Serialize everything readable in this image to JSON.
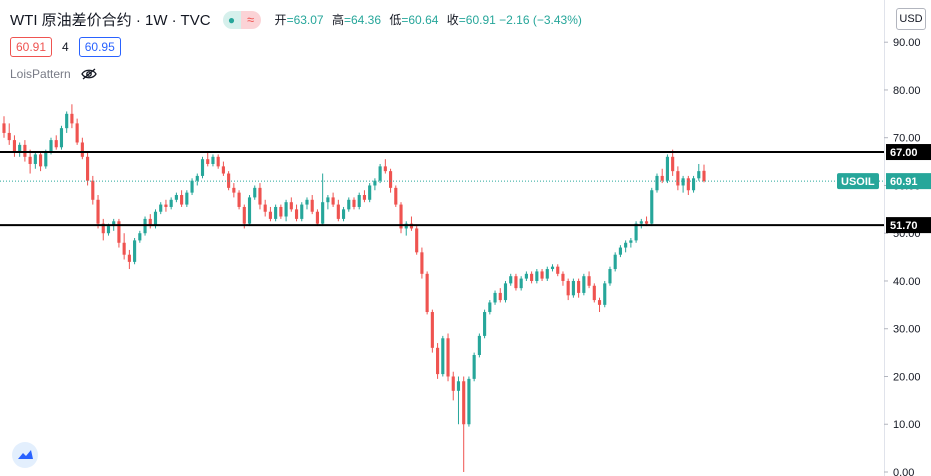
{
  "header": {
    "symbol": "WTI 原油差价合约 · 1W · TVC",
    "status_icon": "≈",
    "ohlc": [
      {
        "k": "开",
        "v": "=63.07"
      },
      {
        "k": "高",
        "v": "=64.36"
      },
      {
        "k": "低",
        "v": "=60.64"
      },
      {
        "k": "收",
        "v": "=60.91 −2.16 (−3.43%)"
      }
    ],
    "bid": "60.91",
    "spread": "4",
    "ask": "60.95",
    "indicator": "LoisPattern"
  },
  "currency_button": "USD",
  "colors": {
    "up": "#26a69a",
    "down": "#ef5350",
    "line": "#000000",
    "axis_text": "#131722"
  },
  "chart_data": {
    "type": "candlestick",
    "symbol": "USOIL",
    "y_axis_labels": [
      "90.00",
      "80.00",
      "70.00",
      "60.00",
      "50.00",
      "40.00",
      "30.00",
      "20.00",
      "10.00",
      "0.00"
    ],
    "ylim": [
      0,
      95
    ],
    "last_price": {
      "label": "USOIL",
      "value": "60.91"
    },
    "horizontal_lines": [
      {
        "value": 67.0,
        "label": "67.00"
      },
      {
        "value": 51.7,
        "label": "51.70"
      }
    ],
    "candles": [
      [
        73.0,
        74.5,
        70.0,
        71.0
      ],
      [
        71.0,
        73.0,
        68.5,
        69.5
      ],
      [
        69.5,
        70.5,
        66.0,
        67.0
      ],
      [
        67.0,
        69.0,
        66.0,
        68.5
      ],
      [
        68.5,
        69.5,
        65.0,
        66.0
      ],
      [
        66.0,
        67.5,
        62.5,
        64.5
      ],
      [
        64.5,
        67.0,
        63.5,
        66.5
      ],
      [
        66.5,
        67.0,
        63.0,
        64.0
      ],
      [
        64.0,
        67.5,
        63.5,
        67.0
      ],
      [
        67.0,
        70.0,
        66.5,
        69.5
      ],
      [
        69.5,
        70.5,
        67.5,
        68.0
      ],
      [
        68.0,
        72.5,
        67.5,
        72.0
      ],
      [
        72.0,
        75.5,
        71.0,
        75.0
      ],
      [
        75.0,
        77.0,
        72.0,
        73.0
      ],
      [
        73.0,
        74.0,
        68.5,
        69.0
      ],
      [
        69.0,
        70.0,
        65.5,
        66.0
      ],
      [
        66.0,
        67.0,
        60.0,
        61.0
      ],
      [
        61.0,
        62.0,
        56.0,
        57.0
      ],
      [
        57.0,
        58.0,
        51.0,
        52.0
      ],
      [
        52.0,
        53.0,
        48.5,
        50.0
      ],
      [
        50.0,
        52.0,
        49.5,
        51.5
      ],
      [
        51.5,
        53.0,
        50.5,
        52.5
      ],
      [
        52.5,
        53.0,
        47.0,
        48.0
      ],
      [
        48.0,
        50.0,
        44.5,
        45.5
      ],
      [
        45.5,
        46.5,
        42.5,
        44.0
      ],
      [
        44.0,
        49.0,
        43.5,
        48.5
      ],
      [
        48.5,
        50.5,
        48.0,
        50.0
      ],
      [
        50.0,
        53.5,
        49.5,
        53.0
      ],
      [
        53.0,
        54.0,
        51.0,
        51.5
      ],
      [
        51.5,
        55.0,
        51.0,
        54.5
      ],
      [
        54.5,
        56.5,
        54.0,
        56.0
      ],
      [
        56.0,
        57.0,
        54.5,
        55.5
      ],
      [
        55.5,
        57.5,
        55.0,
        57.0
      ],
      [
        57.0,
        58.5,
        56.5,
        58.0
      ],
      [
        58.0,
        59.0,
        55.5,
        56.0
      ],
      [
        56.0,
        59.0,
        55.5,
        58.5
      ],
      [
        58.5,
        61.5,
        58.0,
        61.0
      ],
      [
        61.0,
        62.5,
        60.0,
        62.0
      ],
      [
        62.0,
        66.0,
        61.5,
        65.5
      ],
      [
        65.5,
        67.0,
        64.0,
        64.5
      ],
      [
        64.5,
        66.5,
        64.0,
        66.0
      ],
      [
        66.0,
        66.5,
        63.5,
        64.0
      ],
      [
        64.0,
        65.0,
        62.0,
        62.5
      ],
      [
        62.5,
        63.0,
        59.0,
        59.5
      ],
      [
        59.5,
        60.5,
        57.5,
        58.5
      ],
      [
        58.5,
        59.0,
        55.0,
        55.5
      ],
      [
        55.5,
        56.0,
        51.0,
        52.0
      ],
      [
        52.0,
        58.0,
        51.5,
        57.5
      ],
      [
        57.5,
        60.0,
        57.0,
        59.5
      ],
      [
        59.5,
        60.5,
        55.0,
        56.0
      ],
      [
        56.0,
        57.0,
        53.5,
        54.5
      ],
      [
        54.5,
        55.5,
        52.5,
        53.0
      ],
      [
        53.0,
        56.0,
        52.5,
        55.5
      ],
      [
        55.5,
        56.0,
        53.0,
        53.5
      ],
      [
        53.5,
        57.0,
        52.5,
        56.5
      ],
      [
        56.5,
        57.5,
        54.5,
        55.0
      ],
      [
        55.0,
        56.0,
        52.5,
        53.0
      ],
      [
        53.0,
        56.5,
        52.5,
        56.0
      ],
      [
        56.0,
        57.5,
        55.0,
        57.0
      ],
      [
        57.0,
        58.0,
        54.0,
        54.5
      ],
      [
        54.5,
        55.0,
        51.5,
        52.0
      ],
      [
        52.0,
        62.5,
        51.5,
        56.5
      ],
      [
        56.5,
        58.0,
        55.0,
        57.5
      ],
      [
        57.5,
        58.5,
        55.5,
        56.0
      ],
      [
        56.0,
        57.0,
        52.5,
        53.0
      ],
      [
        53.0,
        55.5,
        52.5,
        55.0
      ],
      [
        55.0,
        57.5,
        54.5,
        57.0
      ],
      [
        57.0,
        57.5,
        55.0,
        55.5
      ],
      [
        55.5,
        58.5,
        55.0,
        58.0
      ],
      [
        58.0,
        59.0,
        56.5,
        57.0
      ],
      [
        57.0,
        60.5,
        56.5,
        60.0
      ],
      [
        60.0,
        61.5,
        59.0,
        61.0
      ],
      [
        61.0,
        64.5,
        60.5,
        64.0
      ],
      [
        64.0,
        65.5,
        62.5,
        63.0
      ],
      [
        63.0,
        63.5,
        58.5,
        59.5
      ],
      [
        59.5,
        60.0,
        55.5,
        56.0
      ],
      [
        56.0,
        56.5,
        50.0,
        51.0
      ],
      [
        51.0,
        52.5,
        49.5,
        52.0
      ],
      [
        52.0,
        53.5,
        50.5,
        51.0
      ],
      [
        51.0,
        51.5,
        45.5,
        46.0
      ],
      [
        46.0,
        47.0,
        40.5,
        41.5
      ],
      [
        41.5,
        42.0,
        33.0,
        33.5
      ],
      [
        33.5,
        34.0,
        25.0,
        26.0
      ],
      [
        26.0,
        27.0,
        19.5,
        20.5
      ],
      [
        20.5,
        28.5,
        20.0,
        28.0
      ],
      [
        28.0,
        29.0,
        19.0,
        20.0
      ],
      [
        20.0,
        21.0,
        15.0,
        17.0
      ],
      [
        17.0,
        20.0,
        10.0,
        19.0
      ],
      [
        19.0,
        20.0,
        0.0,
        10.0
      ],
      [
        10.0,
        20.0,
        9.5,
        19.5
      ],
      [
        19.5,
        25.0,
        19.0,
        24.5
      ],
      [
        24.5,
        29.0,
        24.0,
        28.5
      ],
      [
        28.5,
        34.0,
        28.0,
        33.5
      ],
      [
        33.5,
        36.0,
        33.0,
        35.5
      ],
      [
        35.5,
        38.0,
        35.0,
        37.5
      ],
      [
        37.5,
        38.5,
        35.5,
        36.0
      ],
      [
        36.0,
        40.0,
        35.5,
        39.5
      ],
      [
        39.5,
        41.5,
        39.0,
        41.0
      ],
      [
        41.0,
        41.5,
        38.0,
        38.5
      ],
      [
        38.5,
        41.0,
        38.0,
        40.5
      ],
      [
        40.5,
        42.0,
        40.0,
        41.5
      ],
      [
        41.5,
        42.0,
        39.5,
        40.0
      ],
      [
        40.0,
        42.5,
        39.5,
        42.0
      ],
      [
        42.0,
        42.5,
        40.0,
        40.5
      ],
      [
        40.5,
        43.0,
        40.0,
        42.5
      ],
      [
        42.5,
        43.5,
        42.0,
        43.0
      ],
      [
        43.0,
        43.5,
        41.0,
        41.5
      ],
      [
        41.5,
        42.0,
        39.0,
        40.0
      ],
      [
        40.0,
        40.5,
        36.0,
        37.0
      ],
      [
        37.0,
        40.5,
        36.5,
        40.0
      ],
      [
        40.0,
        40.5,
        36.5,
        37.5
      ],
      [
        37.5,
        41.5,
        37.0,
        41.0
      ],
      [
        41.0,
        42.0,
        38.5,
        39.0
      ],
      [
        39.0,
        39.5,
        35.5,
        36.0
      ],
      [
        36.0,
        36.5,
        33.5,
        35.0
      ],
      [
        35.0,
        40.0,
        34.5,
        39.5
      ],
      [
        39.5,
        43.0,
        39.0,
        42.5
      ],
      [
        42.5,
        46.0,
        42.0,
        45.5
      ],
      [
        45.5,
        47.5,
        45.0,
        47.0
      ],
      [
        47.0,
        48.5,
        46.0,
        48.0
      ],
      [
        48.0,
        49.0,
        47.0,
        48.5
      ],
      [
        48.5,
        52.5,
        48.0,
        52.0
      ],
      [
        52.0,
        53.0,
        51.0,
        52.5
      ],
      [
        52.5,
        53.5,
        51.5,
        52.0
      ],
      [
        52.0,
        59.5,
        51.5,
        59.0
      ],
      [
        59.0,
        62.5,
        58.5,
        62.0
      ],
      [
        62.0,
        63.5,
        60.5,
        61.0
      ],
      [
        61.0,
        66.5,
        60.5,
        66.0
      ],
      [
        66.0,
        67.5,
        62.0,
        63.0
      ],
      [
        63.0,
        64.0,
        59.0,
        60.0
      ],
      [
        60.0,
        62.0,
        58.5,
        61.5
      ],
      [
        61.5,
        62.0,
        58.0,
        59.0
      ],
      [
        59.0,
        62.0,
        58.5,
        61.5
      ],
      [
        61.5,
        64.5,
        61.0,
        63.0
      ],
      [
        63.07,
        64.36,
        60.64,
        60.91
      ]
    ]
  }
}
